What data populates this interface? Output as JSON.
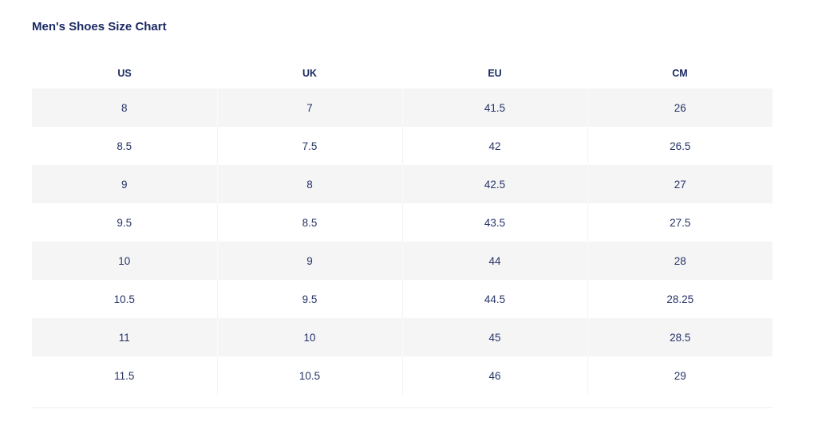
{
  "chart_data": {
    "type": "table",
    "title": "Men's Shoes Size Chart",
    "columns": [
      "US",
      "UK",
      "EU",
      "CM"
    ],
    "rows": [
      [
        "8",
        "7",
        "41.5",
        "26"
      ],
      [
        "8.5",
        "7.5",
        "42",
        "26.5"
      ],
      [
        "9",
        "8",
        "42.5",
        "27"
      ],
      [
        "9.5",
        "8.5",
        "43.5",
        "27.5"
      ],
      [
        "10",
        "9",
        "44",
        "28"
      ],
      [
        "10.5",
        "9.5",
        "44.5",
        "28.25"
      ],
      [
        "11",
        "10",
        "45",
        "28.5"
      ],
      [
        "11.5",
        "10.5",
        "46",
        "29"
      ]
    ],
    "layout": {
      "striped_rows": "odd rows shaded",
      "stripe_color": "#f5f5f6",
      "text_color": "#1b2a63",
      "divider_color": "#ededee"
    }
  }
}
